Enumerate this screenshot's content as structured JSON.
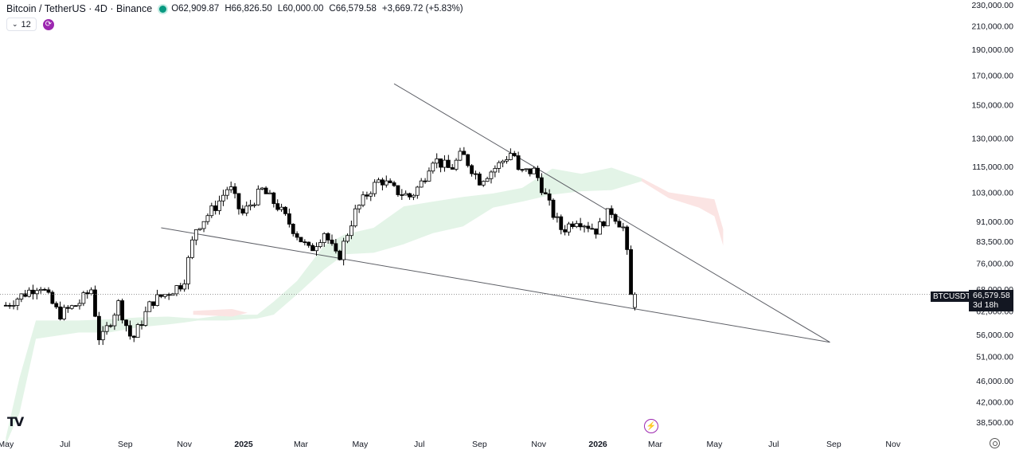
{
  "header": {
    "symbol_title": "Bitcoin / TetherUS · 4D · Binance",
    "ohlc": [
      {
        "k": "O",
        "v": "62,909.87"
      },
      {
        "k": "H",
        "v": "66,826.50"
      },
      {
        "k": "L",
        "v": "60,000.00"
      },
      {
        "k": "C",
        "v": "66,579.58"
      }
    ],
    "change": "+3,669.72 (+5.83%)",
    "indicator_count": "12"
  },
  "price_tag": {
    "symbol": "BTCUSDT",
    "price": "66,579.58",
    "countdown": "3d 18h"
  },
  "logo_text": "TV",
  "colors": {
    "candle_up_fill": "#ffffff",
    "candle_down_fill": "#000000",
    "candle_border": "#000000",
    "cloud_bull": "#e3f4e7",
    "cloud_bear": "#fbe4e3",
    "trendline": "#5d5f66",
    "event_accent": "#9c27b0"
  },
  "chart_data": {
    "type": "candlestick",
    "log_scale": true,
    "ylim": [
      36500,
      240000
    ],
    "xlim": [
      "2024-05-01",
      "2026-11-30"
    ],
    "y_ticks": [
      "230,000.00",
      "210,000.00",
      "190,000.00",
      "170,000.00",
      "150,000.00",
      "130,000.00",
      "115,000.00",
      "103,000.00",
      "91,000.00",
      "83,500.00",
      "76,000.00",
      "68,000.00",
      "62,000.00",
      "56,000.00",
      "51,000.00",
      "46,000.00",
      "42,000.00",
      "38,500.00"
    ],
    "x_ticks": [
      {
        "label": "May",
        "date": "2024-05-01"
      },
      {
        "label": "Jul",
        "date": "2024-07-01"
      },
      {
        "label": "Sep",
        "date": "2024-09-01"
      },
      {
        "label": "Nov",
        "date": "2024-11-01"
      },
      {
        "label": "2025",
        "date": "2025-01-01"
      },
      {
        "label": "Mar",
        "date": "2025-03-01"
      },
      {
        "label": "May",
        "date": "2025-05-01"
      },
      {
        "label": "Jul",
        "date": "2025-07-01"
      },
      {
        "label": "Sep",
        "date": "2025-09-01"
      },
      {
        "label": "Nov",
        "date": "2025-11-01"
      },
      {
        "label": "2026",
        "date": "2026-01-01"
      },
      {
        "label": "Mar",
        "date": "2026-03-01"
      },
      {
        "label": "May",
        "date": "2026-05-01"
      },
      {
        "label": "Jul",
        "date": "2026-07-01"
      },
      {
        "label": "Sep",
        "date": "2026-09-01"
      },
      {
        "label": "Nov",
        "date": "2026-11-01"
      }
    ],
    "last_price": 66579.58,
    "close_path": [
      [
        "2024-05-01",
        63500
      ],
      [
        "2024-06-05",
        69500
      ],
      [
        "2024-06-25",
        61000
      ],
      [
        "2024-07-15",
        64000
      ],
      [
        "2024-07-28",
        68000
      ],
      [
        "2024-08-06",
        54000
      ],
      [
        "2024-08-25",
        64000
      ],
      [
        "2024-09-08",
        54500
      ],
      [
        "2024-09-28",
        64500
      ],
      [
        "2024-10-15",
        67000
      ],
      [
        "2024-10-31",
        70000
      ],
      [
        "2024-11-12",
        88000
      ],
      [
        "2024-12-05",
        98000
      ],
      [
        "2024-12-17",
        106000
      ],
      [
        "2024-12-30",
        93500
      ],
      [
        "2025-01-20",
        104000
      ],
      [
        "2025-02-05",
        97000
      ],
      [
        "2025-02-28",
        84500
      ],
      [
        "2025-03-10",
        80000
      ],
      [
        "2025-03-25",
        87000
      ],
      [
        "2025-04-08",
        77000
      ],
      [
        "2025-04-25",
        94000
      ],
      [
        "2025-05-10",
        103500
      ],
      [
        "2025-05-22",
        109000
      ],
      [
        "2025-06-05",
        104000
      ],
      [
        "2025-06-22",
        101000
      ],
      [
        "2025-07-05",
        108500
      ],
      [
        "2025-07-14",
        119500
      ],
      [
        "2025-08-02",
        113500
      ],
      [
        "2025-08-14",
        121500
      ],
      [
        "2025-09-01",
        108500
      ],
      [
        "2025-09-20",
        115500
      ],
      [
        "2025-10-06",
        123500
      ],
      [
        "2025-10-10",
        112000
      ],
      [
        "2025-10-28",
        113000
      ],
      [
        "2025-11-15",
        94500
      ],
      [
        "2025-11-25",
        87500
      ],
      [
        "2025-12-10",
        92000
      ],
      [
        "2025-12-31",
        87500
      ],
      [
        "2026-01-14",
        95500
      ],
      [
        "2026-01-28",
        88000
      ],
      [
        "2026-02-01",
        76000
      ],
      [
        "2026-02-05",
        62909.87
      ],
      [
        "2026-02-09",
        66579.58
      ]
    ],
    "ichimoku_cloud": [
      [
        "2024-05-01",
        35000,
        36000
      ],
      [
        "2024-05-15",
        40000,
        46500
      ],
      [
        "2024-06-01",
        55000,
        59500
      ],
      [
        "2024-07-15",
        56500,
        59500
      ],
      [
        "2024-08-15",
        56500,
        59800
      ],
      [
        "2024-09-15",
        57800,
        60300
      ],
      [
        "2024-10-15",
        58500,
        60500
      ],
      [
        "2024-11-01",
        59000,
        60200
      ],
      [
        "2024-11-15",
        59500,
        60000
      ],
      [
        "2024-12-15",
        59500,
        61000
      ],
      [
        "2025-01-15",
        60000,
        61000
      ],
      [
        "2025-02-01",
        61000,
        64500
      ],
      [
        "2025-02-25",
        66500,
        70500
      ],
      [
        "2025-03-25",
        74000,
        82000
      ],
      [
        "2025-04-15",
        79000,
        86000
      ],
      [
        "2025-05-15",
        79500,
        88500
      ],
      [
        "2025-06-15",
        82500,
        97000
      ],
      [
        "2025-07-15",
        86500,
        99000
      ],
      [
        "2025-08-15",
        89000,
        101000
      ],
      [
        "2025-09-15",
        96500,
        102500
      ],
      [
        "2025-10-15",
        99000,
        105000
      ],
      [
        "2025-11-15",
        102000,
        114000
      ],
      [
        "2025-12-15",
        103500,
        111500
      ],
      [
        "2026-01-15",
        104000,
        114500
      ],
      [
        "2026-02-15",
        108000,
        109500
      ],
      [
        "2026-03-15",
        100500,
        103000
      ],
      [
        "2026-04-15",
        96500,
        101000
      ],
      [
        "2026-05-01",
        93000,
        100000
      ],
      [
        "2026-05-10",
        82000,
        88000
      ]
    ],
    "trendlines": [
      {
        "name": "",
        "from": [
          "2024-10-08",
          88500
        ],
        "to": [
          "2026-08-28",
          54200
        ]
      },
      {
        "name": "",
        "from": [
          "2025-06-05",
          164000
        ],
        "to": [
          "2026-08-28",
          54200
        ]
      }
    ]
  }
}
